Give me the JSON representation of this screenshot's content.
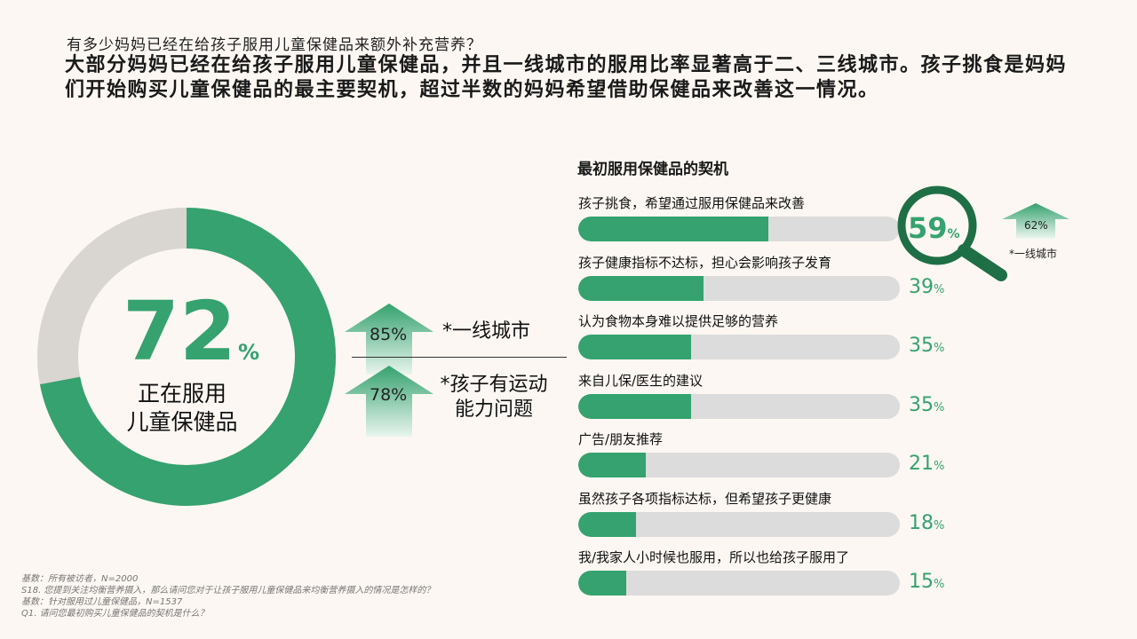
{
  "question": "有多少妈妈已经在给孩子服用儿童保健品来额外补充营养？",
  "headline": "大部分妈妈已经在给孩子服用儿童保健品，并且一线城市的服用比率显著高于二、三线城市。孩子挑食是妈妈们开始购买儿童保健品的最主要契机，超过半数的妈妈希望借助保健品来改善这一情况。",
  "donut": {
    "value": 72,
    "value_text": "72",
    "pct_sign": "%",
    "label_line1": "正在服用",
    "label_line2": "儿童保健品",
    "color_main": "#35a26f",
    "color_rest": "#d9d5d0"
  },
  "callouts": [
    {
      "value_text": "85%",
      "label": "*一线城市"
    },
    {
      "value_text": "78%",
      "label_line1": "*孩子有运动",
      "label_line2": "能力问题"
    }
  ],
  "chart_data": {
    "type": "bar",
    "title": "最初服用保健品的契机",
    "categories": [
      "孩子挑食，希望通过服用保健品来改善",
      "孩子健康指标不达标，担心会影响孩子发育",
      "认为食物本身难以提供足够的营养",
      "来自儿保/医生的建议",
      "广告/朋友推荐",
      "虽然孩子各项指标达标，但希望孩子更健康",
      "我/我家人小时候也服用，所以也给孩子服用了"
    ],
    "values": [
      59,
      39,
      35,
      35,
      21,
      18,
      15
    ],
    "value_texts": [
      "59",
      "39",
      "35",
      "35",
      "21",
      "18",
      "15"
    ],
    "unit": "%",
    "ylim": [
      0,
      100
    ],
    "bar_color": "#35a26f",
    "track_color": "#dcdcdc"
  },
  "highlight": {
    "tier1_value_text": "62%",
    "tier1_label": "*一线城市"
  },
  "notes": [
    "基数：所有被访者，N=2000",
    "S18. 您提到关注均衡营养摄入，那么请问您对于让孩子服用儿童保健品来均衡营养摄入的情况是怎样的？",
    "基数：针对服用过儿童保健品，N=1537",
    "Q1. 请问您最初购买儿童保健品的契机是什么？"
  ]
}
